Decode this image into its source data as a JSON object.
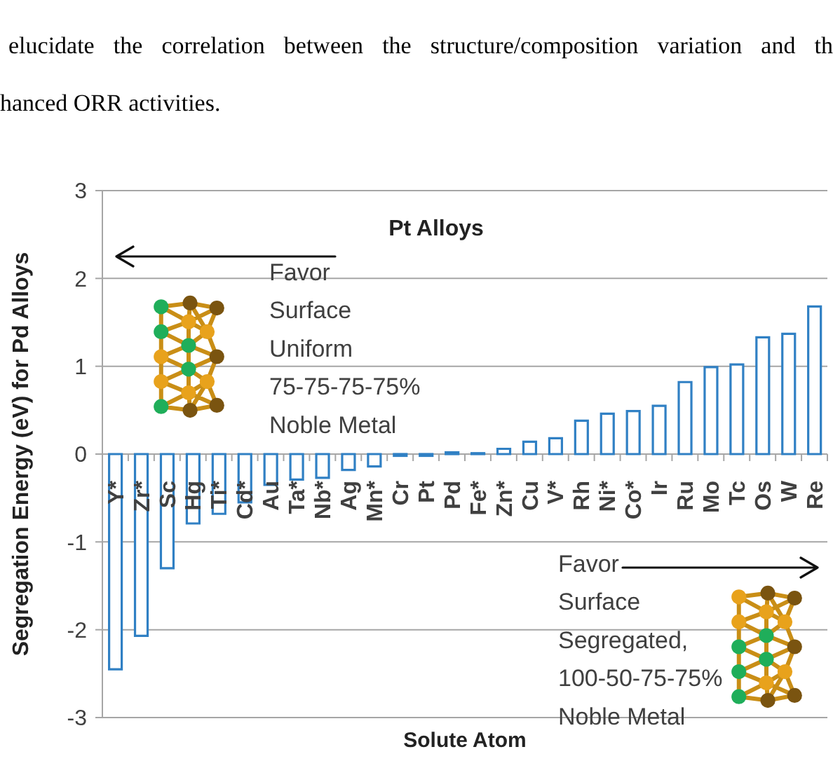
{
  "chart_data": {
    "type": "bar",
    "title": "Pt Alloys",
    "xlabel": "Solute Atom",
    "ylabel": "Segregation Energy (eV) for Pd Alloys",
    "categories": [
      "Y*",
      "Zr*",
      "Sc",
      "Hg",
      "Ti*",
      "Cd*",
      "Au",
      "Ta*",
      "Nb*",
      "Ag",
      "Mn*",
      "Cr",
      "Pt",
      "Pd",
      "Fe*",
      "Zn*",
      "Cu",
      "V*",
      "Rh",
      "Ni*",
      "Co*",
      "Ir",
      "Ru",
      "Mo",
      "Tc",
      "Os",
      "W",
      "Re"
    ],
    "values": [
      -2.45,
      -2.07,
      -1.3,
      -0.79,
      -0.68,
      -0.55,
      -0.35,
      -0.29,
      -0.27,
      -0.18,
      -0.14,
      -0.02,
      -0.02,
      0.02,
      0.01,
      0.06,
      0.14,
      0.18,
      0.38,
      0.46,
      0.49,
      0.55,
      0.82,
      0.99,
      1.02,
      1.33,
      1.37,
      1.68
    ],
    "color": "#3080c4",
    "ylim": [
      -3,
      3
    ],
    "yticks": [
      -3,
      -2,
      -1,
      0,
      1,
      2,
      3
    ],
    "grid": "y",
    "annotations": [
      "elucidate the correlation between the structure/composition variation and th",
      "hanced ORR activities.",
      "Favor\nSurface\nUniform\n75-75-75-75%\nNoble Metal",
      "Favor\nSurface\nSegregated,\n100-50-75-75%\nNoble Metal"
    ]
  }
}
